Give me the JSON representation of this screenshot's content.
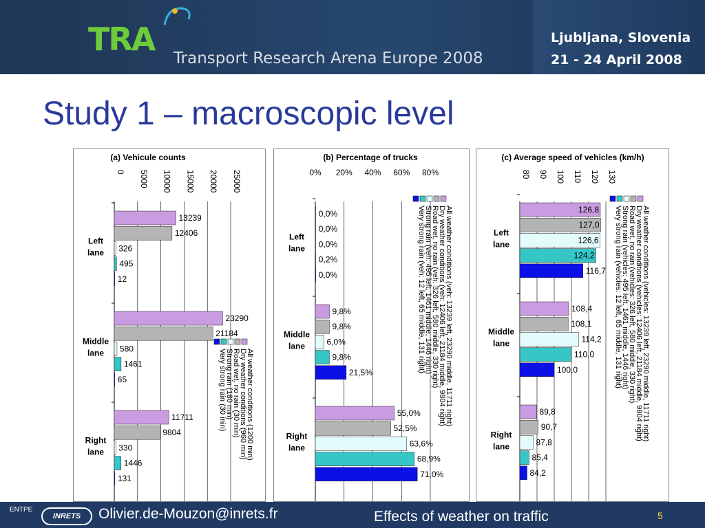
{
  "header": {
    "logo": "TRA",
    "subtitle": "Transport Research Arena Europe 2008",
    "city": "Ljubljana, Slovenia",
    "date": "21 - 24 April 2008"
  },
  "title": "Study 1 – macroscopic level",
  "footer": {
    "entpe": "ENTPE",
    "inrets": "INRETS",
    "email": "Olivier.de-Mouzon@inrets.fr",
    "topic": "Effects of weather on traffic",
    "page": "5"
  },
  "colors": {
    "all_weather": "#c99be0",
    "dry": "#b4b4b4",
    "road_wet": "#e4fbfb",
    "strong_rain": "#36c6c6",
    "very_strong_rain": "#0a10e6",
    "title": "#2a3a9a",
    "header_bg": "#1f3655"
  },
  "chart_data": [
    {
      "type": "bar",
      "title": "(a) Vehicule counts",
      "categories": [
        "Left lane",
        "Middle lane",
        "Right lane"
      ],
      "series": [
        {
          "name": "All weather conditions (1200 min)",
          "values": [
            13239,
            23290,
            11711
          ]
        },
        {
          "name": "Dry weather conditions (960 min)",
          "values": [
            12406,
            21184,
            9804
          ]
        },
        {
          "name": "Road wet, no rain (30 min)",
          "values": [
            326,
            580,
            330
          ]
        },
        {
          "name": "Strong rain (180 min)",
          "values": [
            495,
            1461,
            1446
          ]
        },
        {
          "name": "Very strong rain (30 min)",
          "values": [
            12,
            65,
            131
          ]
        }
      ],
      "labels": [
        [
          "13239",
          "12406",
          "326",
          "495",
          "12"
        ],
        [
          "23290",
          "21184",
          "580",
          "1461",
          "65"
        ],
        [
          "11711",
          "9804",
          "330",
          "1446",
          "131"
        ]
      ],
      "ticks": [
        "0",
        "5000",
        "10000",
        "15000",
        "20000",
        "25000"
      ],
      "xlim": [
        0,
        25000
      ],
      "grid": true
    },
    {
      "type": "bar",
      "title": "(b) Percentage of trucks",
      "categories": [
        "Left lane",
        "Middle lane",
        "Right lane"
      ],
      "series": [
        {
          "name": "All weather conditions (veh: 13239 left, 23290 middle, 11711 right)",
          "values": [
            0.0,
            9.8,
            55.0
          ]
        },
        {
          "name": "Dry weather conditions (veh: 12406 left, 21184 middle, 9804 right)",
          "values": [
            0.0,
            9.8,
            52.5
          ]
        },
        {
          "name": "Road wet, no rain (veh: 326 left, 580 middle, 330 right)",
          "values": [
            0.0,
            6.0,
            63.6
          ]
        },
        {
          "name": "Strong rain (veh: 495 left, 1461 middle, 1446 right)",
          "values": [
            0.2,
            9.8,
            68.9
          ]
        },
        {
          "name": "Very strong rain (veh: 12 left, 65 middle, 131 right)",
          "values": [
            0.0,
            21.5,
            71.0
          ]
        }
      ],
      "labels": [
        [
          "0,0%",
          "0,0%",
          "0,0%",
          "0,2%",
          "0,0%"
        ],
        [
          "9,8%",
          "9,8%",
          "6,0%",
          "9,8%",
          "21,5%"
        ],
        [
          "55,0%",
          "52,5%",
          "63,6%",
          "68,9%",
          "71,0%"
        ]
      ],
      "ticks": [
        "0%",
        "20%",
        "40%",
        "60%",
        "80%"
      ],
      "xlim": [
        0,
        80
      ],
      "grid": true
    },
    {
      "type": "bar",
      "title": "(c) Average speed of vehicles (km/h)",
      "categories": [
        "Left lane",
        "Middle lane",
        "Right lane"
      ],
      "series": [
        {
          "name": "All weather conditions (vehicles: 13239 left, 23290 middle, 11711 right)",
          "values": [
            126.8,
            108.4,
            89.8
          ]
        },
        {
          "name": "Dry weather conditions (vehicles: 12406 left, 21184 middle, 9804 right)",
          "values": [
            127.0,
            108.1,
            90.7
          ]
        },
        {
          "name": "Road wet, no rain (vehicles: 326 left, 580 middle, 330 right)",
          "values": [
            126.6,
            114.2,
            87.8
          ]
        },
        {
          "name": "Strong rain (vehicles: 495 left, 1461 middle, 1446 right)",
          "values": [
            124.2,
            110.0,
            85.4
          ]
        },
        {
          "name": "Very strong rain (vehicles: 12 left, 65 middle, 131 right)",
          "values": [
            116.7,
            100.0,
            84.2
          ]
        }
      ],
      "labels": [
        [
          "126,8",
          "127,0",
          "126,6",
          "124,2",
          "116,7"
        ],
        [
          "108,4",
          "108,1",
          "114,2",
          "110,0",
          "100,0"
        ],
        [
          "89,8",
          "90,7",
          "87,8",
          "85,4",
          "84,2"
        ]
      ],
      "ticks": [
        "80",
        "90",
        "100",
        "110",
        "120",
        "130"
      ],
      "xlim": [
        80,
        130
      ],
      "grid": true
    }
  ]
}
